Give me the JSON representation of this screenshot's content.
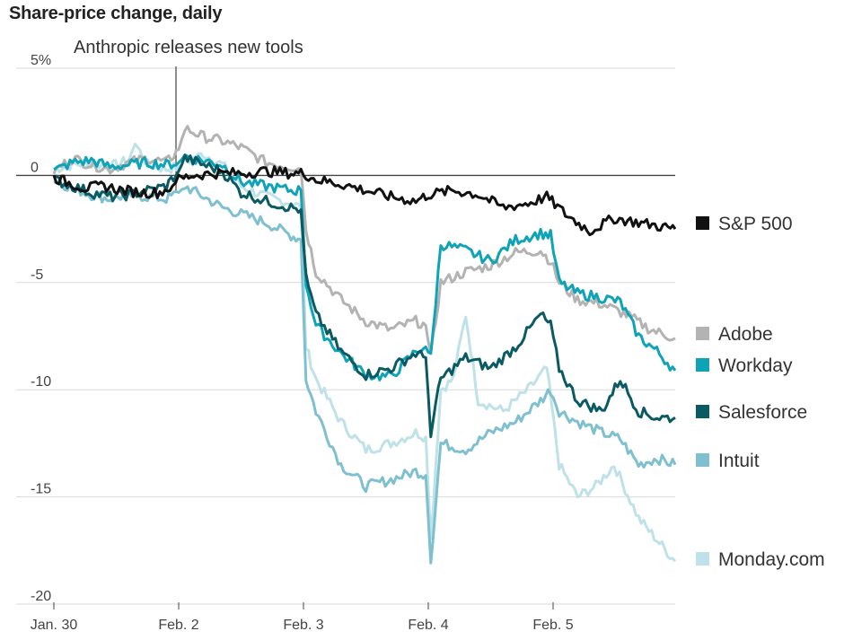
{
  "chart_data": {
    "type": "line",
    "title": "Share-price change, daily",
    "annotation": "Anthropic releases new tools",
    "unit_suffix": "%",
    "x_ticks": [
      "Jan. 30",
      "Feb. 2",
      "Feb. 3",
      "Feb. 4",
      "Feb. 5"
    ],
    "y_ticks": [
      5,
      0,
      -5,
      -10,
      -15,
      -20
    ],
    "ylim": [
      -20,
      5
    ],
    "grid": true,
    "legend_placement": "right",
    "series": [
      {
        "name": "S&P 500",
        "color": "#111111",
        "points": [
          [
            0,
            -0.1
          ],
          [
            0.1,
            -0.3
          ],
          [
            0.25,
            -0.6
          ],
          [
            0.4,
            -0.5
          ],
          [
            0.55,
            -0.7
          ],
          [
            0.7,
            -0.8
          ],
          [
            0.85,
            -0.8
          ],
          [
            0.95,
            -0.5
          ],
          [
            1.0,
            -0.2
          ],
          [
            1.1,
            0.0
          ],
          [
            1.3,
            0.1
          ],
          [
            1.5,
            0.1
          ],
          [
            1.7,
            0.2
          ],
          [
            1.9,
            0.1
          ],
          [
            2.0,
            0.1
          ],
          [
            2.1,
            -0.2
          ],
          [
            2.3,
            -0.4
          ],
          [
            2.5,
            -0.7
          ],
          [
            2.7,
            -1.0
          ],
          [
            2.9,
            -1.2
          ],
          [
            3.0,
            -0.9
          ],
          [
            3.2,
            -0.7
          ],
          [
            3.4,
            -0.9
          ],
          [
            3.6,
            -1.5
          ],
          [
            3.8,
            -1.3
          ],
          [
            3.95,
            -1.0
          ],
          [
            4.1,
            -1.8
          ],
          [
            4.3,
            -2.6
          ],
          [
            4.5,
            -2.0
          ],
          [
            4.7,
            -2.2
          ],
          [
            4.9,
            -2.4
          ],
          [
            5.0,
            -2.5
          ]
        ]
      },
      {
        "name": "Adobe",
        "color": "#b3b3b3",
        "points": [
          [
            0,
            0.2
          ],
          [
            0.15,
            0.8
          ],
          [
            0.3,
            0.5
          ],
          [
            0.45,
            0.3
          ],
          [
            0.6,
            0.6
          ],
          [
            0.75,
            0.8
          ],
          [
            0.9,
            0.6
          ],
          [
            1.0,
            1.2
          ],
          [
            1.05,
            2.2
          ],
          [
            1.2,
            1.8
          ],
          [
            1.35,
            1.6
          ],
          [
            1.5,
            1.3
          ],
          [
            1.7,
            0.6
          ],
          [
            1.9,
            0.4
          ],
          [
            1.98,
            0.3
          ],
          [
            2.02,
            -2.5
          ],
          [
            2.1,
            -4.5
          ],
          [
            2.3,
            -5.8
          ],
          [
            2.5,
            -6.8
          ],
          [
            2.7,
            -7.2
          ],
          [
            2.9,
            -6.8
          ],
          [
            2.98,
            -7.0
          ],
          [
            3.02,
            -8.5
          ],
          [
            3.1,
            -5.0
          ],
          [
            3.3,
            -4.5
          ],
          [
            3.5,
            -4.2
          ],
          [
            3.7,
            -3.6
          ],
          [
            3.9,
            -3.5
          ],
          [
            3.98,
            -4.0
          ],
          [
            4.05,
            -5.0
          ],
          [
            4.2,
            -5.8
          ],
          [
            4.4,
            -6.0
          ],
          [
            4.6,
            -6.5
          ],
          [
            4.8,
            -7.2
          ],
          [
            5.0,
            -7.6
          ]
        ]
      },
      {
        "name": "Workday",
        "color": "#0fa3b8",
        "points": [
          [
            0,
            0.2
          ],
          [
            0.15,
            0.6
          ],
          [
            0.3,
            0.7
          ],
          [
            0.45,
            0.4
          ],
          [
            0.6,
            0.5
          ],
          [
            0.75,
            0.6
          ],
          [
            0.9,
            0.5
          ],
          [
            1.0,
            0.6
          ],
          [
            1.05,
            0.9
          ],
          [
            1.2,
            0.7
          ],
          [
            1.35,
            0.5
          ],
          [
            1.5,
            -0.3
          ],
          [
            1.7,
            -0.5
          ],
          [
            1.9,
            -0.7
          ],
          [
            1.98,
            -0.7
          ],
          [
            2.02,
            -5.0
          ],
          [
            2.1,
            -7.0
          ],
          [
            2.3,
            -8.3
          ],
          [
            2.5,
            -9.3
          ],
          [
            2.7,
            -9.4
          ],
          [
            2.9,
            -8.2
          ],
          [
            2.98,
            -8.0
          ],
          [
            3.02,
            -8.5
          ],
          [
            3.1,
            -3.2
          ],
          [
            3.3,
            -3.5
          ],
          [
            3.5,
            -4.0
          ],
          [
            3.7,
            -3.0
          ],
          [
            3.9,
            -2.7
          ],
          [
            3.98,
            -2.8
          ],
          [
            4.05,
            -5.0
          ],
          [
            4.2,
            -5.5
          ],
          [
            4.4,
            -5.7
          ],
          [
            4.55,
            -5.9
          ],
          [
            4.7,
            -7.5
          ],
          [
            4.85,
            -8.2
          ],
          [
            5.0,
            -9.1
          ]
        ]
      },
      {
        "name": "Salesforce",
        "color": "#0a5a63",
        "points": [
          [
            0,
            -0.2
          ],
          [
            0.15,
            -0.5
          ],
          [
            0.3,
            -0.8
          ],
          [
            0.45,
            -1.0
          ],
          [
            0.6,
            -0.9
          ],
          [
            0.75,
            -0.7
          ],
          [
            0.9,
            -0.5
          ],
          [
            1.0,
            0.2
          ],
          [
            1.05,
            0.8
          ],
          [
            1.2,
            0.5
          ],
          [
            1.35,
            0.2
          ],
          [
            1.5,
            -0.8
          ],
          [
            1.7,
            -1.2
          ],
          [
            1.9,
            -1.5
          ],
          [
            1.98,
            -1.6
          ],
          [
            2.02,
            -4.8
          ],
          [
            2.1,
            -6.5
          ],
          [
            2.3,
            -8.2
          ],
          [
            2.5,
            -9.3
          ],
          [
            2.7,
            -9.0
          ],
          [
            2.9,
            -8.3
          ],
          [
            2.98,
            -8.5
          ],
          [
            3.02,
            -12.0
          ],
          [
            3.1,
            -9.5
          ],
          [
            3.3,
            -8.5
          ],
          [
            3.5,
            -9.0
          ],
          [
            3.7,
            -8.0
          ],
          [
            3.9,
            -6.5
          ],
          [
            3.98,
            -7.0
          ],
          [
            4.05,
            -9.0
          ],
          [
            4.2,
            -10.5
          ],
          [
            4.4,
            -11.0
          ],
          [
            4.55,
            -9.5
          ],
          [
            4.7,
            -11.0
          ],
          [
            4.85,
            -11.3
          ],
          [
            5.0,
            -11.3
          ]
        ]
      },
      {
        "name": "Intuit",
        "color": "#7ec0cf",
        "points": [
          [
            0,
            -0.2
          ],
          [
            0.15,
            -0.6
          ],
          [
            0.3,
            -0.9
          ],
          [
            0.45,
            -1.1
          ],
          [
            0.6,
            -0.9
          ],
          [
            0.75,
            -1.0
          ],
          [
            0.9,
            -1.1
          ],
          [
            1.0,
            -0.8
          ],
          [
            1.05,
            -0.5
          ],
          [
            1.2,
            -1.0
          ],
          [
            1.35,
            -1.5
          ],
          [
            1.5,
            -1.8
          ],
          [
            1.7,
            -2.2
          ],
          [
            1.9,
            -2.8
          ],
          [
            1.98,
            -3.0
          ],
          [
            2.02,
            -9.5
          ],
          [
            2.1,
            -11.0
          ],
          [
            2.3,
            -13.5
          ],
          [
            2.5,
            -14.5
          ],
          [
            2.7,
            -14.2
          ],
          [
            2.9,
            -13.8
          ],
          [
            2.98,
            -14.0
          ],
          [
            3.02,
            -18.0
          ],
          [
            3.1,
            -12.5
          ],
          [
            3.3,
            -12.8
          ],
          [
            3.5,
            -12.0
          ],
          [
            3.7,
            -11.5
          ],
          [
            3.9,
            -10.5
          ],
          [
            3.98,
            -10.0
          ],
          [
            4.05,
            -11.0
          ],
          [
            4.2,
            -11.5
          ],
          [
            4.4,
            -12.0
          ],
          [
            4.55,
            -12.3
          ],
          [
            4.7,
            -13.5
          ],
          [
            4.85,
            -13.2
          ],
          [
            5.0,
            -13.5
          ]
        ]
      },
      {
        "name": "Monday.com",
        "color": "#bfe1e8",
        "points": [
          [
            0,
            0.3
          ],
          [
            0.15,
            0.5
          ],
          [
            0.3,
            0.6
          ],
          [
            0.45,
            0.4
          ],
          [
            0.6,
            0.7
          ],
          [
            0.65,
            1.5
          ],
          [
            0.75,
            0.5
          ],
          [
            0.9,
            0.3
          ],
          [
            1.0,
            0.4
          ],
          [
            1.05,
            0.6
          ],
          [
            1.2,
            1.0
          ],
          [
            1.35,
            0.5
          ],
          [
            1.5,
            -0.5
          ],
          [
            1.7,
            -1.0
          ],
          [
            1.9,
            -1.3
          ],
          [
            1.98,
            -1.5
          ],
          [
            2.02,
            -8.0
          ],
          [
            2.1,
            -9.5
          ],
          [
            2.3,
            -11.5
          ],
          [
            2.5,
            -12.8
          ],
          [
            2.7,
            -12.5
          ],
          [
            2.9,
            -12.0
          ],
          [
            2.98,
            -12.2
          ],
          [
            3.02,
            -17.0
          ],
          [
            3.1,
            -10.0
          ],
          [
            3.2,
            -9.5
          ],
          [
            3.3,
            -6.5
          ],
          [
            3.4,
            -10.5
          ],
          [
            3.6,
            -11.0
          ],
          [
            3.8,
            -10.0
          ],
          [
            3.95,
            -9.0
          ],
          [
            4.05,
            -13.5
          ],
          [
            4.2,
            -15.0
          ],
          [
            4.35,
            -14.5
          ],
          [
            4.5,
            -13.5
          ],
          [
            4.7,
            -16.0
          ],
          [
            4.85,
            -17.0
          ],
          [
            5.0,
            -18.0
          ]
        ]
      }
    ]
  }
}
